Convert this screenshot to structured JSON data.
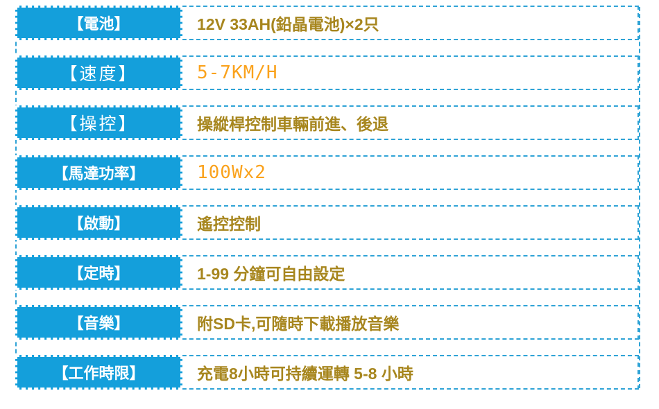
{
  "theme": {
    "cell_blue": "#149fdb",
    "dash_blue": "#2fa3d6",
    "text_gold": "#a7861e",
    "text_orange": "#faa21c"
  },
  "spec_table": {
    "rows": [
      {
        "label": "【電池】",
        "value": "12V 33AH(鉛晶電池)×2只",
        "value_style": "gold",
        "label_style": "bold"
      },
      {
        "label": "【速度】",
        "value": "5-7KM/H",
        "value_style": "orange",
        "label_style": "light"
      },
      {
        "label": "【操控】",
        "value": "操縱桿控制車輛前進、後退",
        "value_style": "gold",
        "label_style": "light"
      },
      {
        "label": "【馬達功率】",
        "value": "100Wx2",
        "value_style": "orange",
        "label_style": "bold"
      },
      {
        "label": "【啟動】",
        "value": "遙控控制",
        "value_style": "gold",
        "label_style": "bold"
      },
      {
        "label": "【定時】",
        "value": "1-99 分鐘可自由設定",
        "value_style": "gold",
        "label_style": "bold"
      },
      {
        "label": "【音樂】",
        "value": "附SD卡,可隨時下載播放音樂",
        "value_style": "gold",
        "label_style": "bold"
      },
      {
        "label": "【工作時限】",
        "value": "充電8小時可持續運轉 5-8 小時",
        "value_style": "gold",
        "label_style": "bold"
      }
    ]
  }
}
